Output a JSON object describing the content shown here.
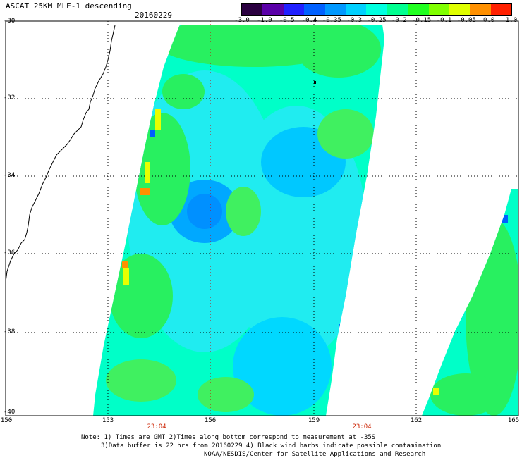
{
  "header": {
    "title": "ASCAT 25KM MLE-1 descending",
    "date": "20160229"
  },
  "colorbar": {
    "labels": [
      "-3.0",
      "-1.0",
      "-0.5",
      "-0.4",
      "-0.35",
      "-0.3",
      "-0.25",
      "-0.2",
      "-0.15",
      "-0.1",
      "-0.05",
      "0.0",
      "1.0"
    ],
    "colors": [
      "#2a0040",
      "#5a00a8",
      "#2020ff",
      "#0060ff",
      "#0098ff",
      "#00d0ff",
      "#00ffe0",
      "#00ff90",
      "#20ff20",
      "#80ff00",
      "#e0ff00",
      "#ff9000",
      "#ff2000"
    ]
  },
  "axes": {
    "lat_labels": [
      "-30",
      "-32",
      "-34",
      "-36",
      "-38",
      "-40"
    ],
    "lon_labels": [
      "150",
      "153",
      "156",
      "159",
      "162",
      "165"
    ],
    "time_labels": [
      "23:04",
      "23:04"
    ]
  },
  "notes": {
    "line1": "Note: 1) Times are GMT 2)Times along bottom correspond to measurement at -35S",
    "line2": "3)Data buffer is 22 hrs from 20160229 4) Black wind barbs indicate possible contamination",
    "line3": "NOAA/NESDIS/Center for Satellite Applications and Research"
  },
  "map_colors": {
    "swath_base": "#00ffc8",
    "swath_green": "#28f060",
    "swath_light": "#20ecf0",
    "swath_blue": "#00c8ff",
    "swath_deep": "#0090ff",
    "yellow": "#e8ff00",
    "orange": "#ff9000",
    "grid": "#000000",
    "center_line": "#cc0000"
  }
}
